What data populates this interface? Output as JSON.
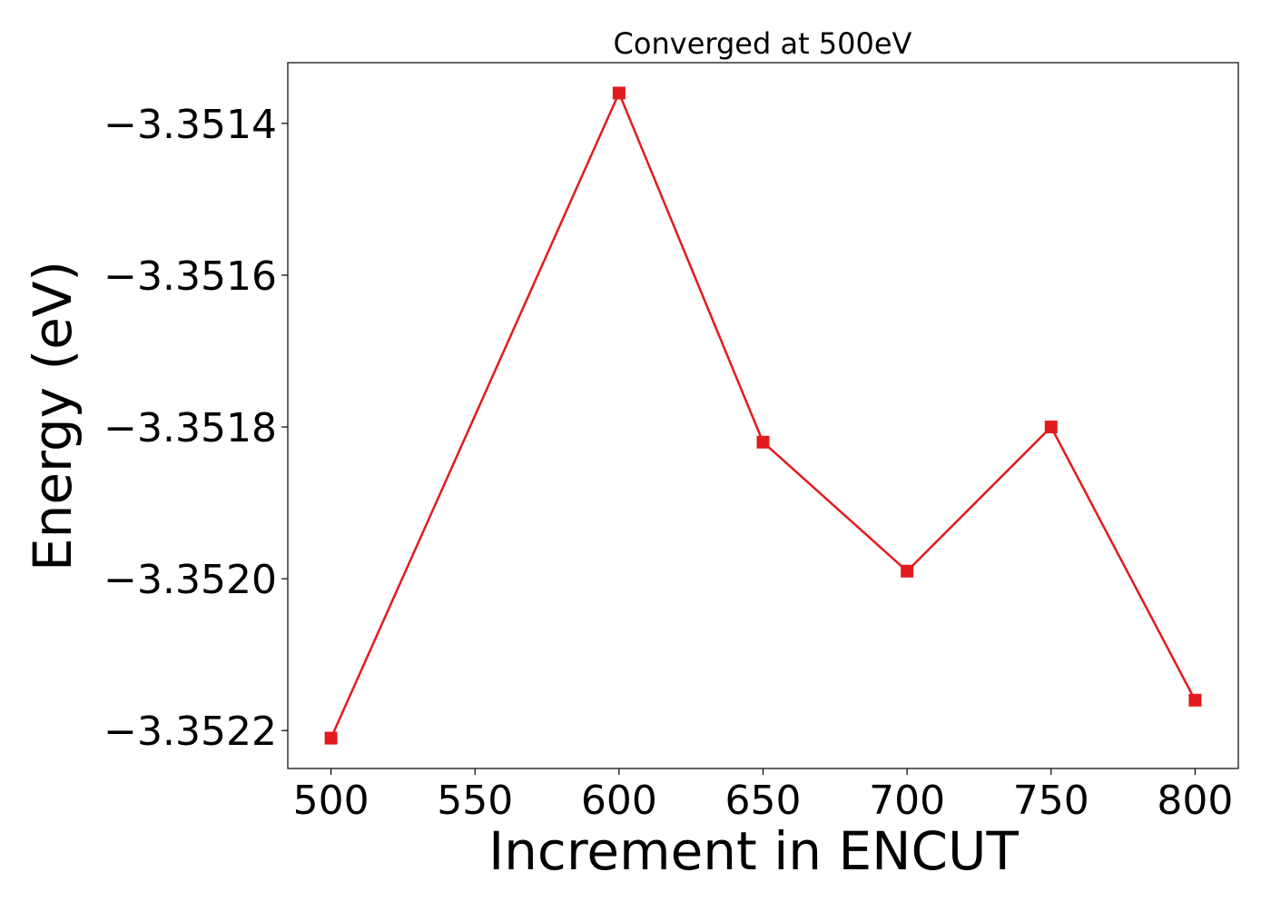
{
  "chart_data": {
    "type": "line",
    "title": "Converged at 500eV",
    "xlabel": "Increment in ENCUT",
    "ylabel": "Energy (eV)",
    "x": [
      500,
      600,
      650,
      700,
      750,
      800
    ],
    "series": [
      {
        "values": [
          -3.35221,
          -3.35136,
          -3.35182,
          -3.35199,
          -3.3518,
          -3.35216
        ],
        "color": "#e31a1c",
        "marker": "square"
      }
    ],
    "xticks": [
      500,
      550,
      600,
      650,
      700,
      750,
      800
    ],
    "xtick_labels": [
      "500",
      "550",
      "600",
      "650",
      "700",
      "750",
      "800"
    ],
    "yticks": [
      -3.3514,
      -3.3516,
      -3.3518,
      -3.352,
      -3.3522
    ],
    "ytick_labels": [
      "−3.3514",
      "−3.3516",
      "−3.3518",
      "−3.3520",
      "−3.3522"
    ],
    "xlim": [
      485,
      815
    ],
    "ylim": [
      -3.35225,
      -3.35132
    ],
    "grid": false,
    "legend": "none"
  }
}
